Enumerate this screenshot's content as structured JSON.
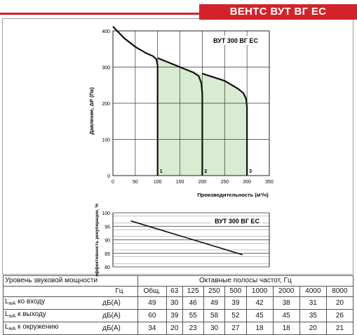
{
  "header": {
    "title": "ВЕНТС ВУТ ВГ ЕС"
  },
  "chart_data": [
    {
      "type": "line",
      "model_label": "ВУТ 300 ВГ ЕС",
      "xlabel": "Производительность (м³/ч)",
      "ylabel": "Давление, ΔР (Па)",
      "xlim": [
        0,
        350
      ],
      "ylim": [
        0,
        400
      ],
      "x_ticks": [
        0,
        50,
        100,
        150,
        200,
        250,
        300,
        350
      ],
      "y_ticks": [
        0,
        100,
        200,
        300,
        400
      ],
      "grid": true,
      "fill_color": "#d7ecd0",
      "curve_color": "#111111",
      "main_curve": {
        "x": [
          0,
          25,
          50,
          75,
          100,
          150,
          200,
          250,
          280,
          300
        ],
        "y": [
          412,
          380,
          356,
          340,
          325,
          300,
          282,
          262,
          240,
          220
        ]
      },
      "series": [
        {
          "name": "1",
          "x": [
            0,
            25,
            50,
            75,
            90,
            97,
            100,
            100
          ],
          "y": [
            412,
            380,
            356,
            338,
            330,
            322,
            305,
            0
          ]
        },
        {
          "name": "2",
          "x": [
            100,
            150,
            180,
            192,
            198,
            200,
            200
          ],
          "y": [
            325,
            300,
            285,
            275,
            255,
            225,
            0
          ]
        },
        {
          "name": "3",
          "x": [
            200,
            250,
            280,
            292,
            298,
            300,
            300
          ],
          "y": [
            282,
            262,
            240,
            228,
            212,
            190,
            0
          ]
        }
      ]
    },
    {
      "type": "line",
      "model_label": "ВУТ 300 ВГ ЕС",
      "ylabel": "эффективность рекуперации, %",
      "ylim": [
        80,
        100
      ],
      "y_ticks": [
        80,
        85,
        90,
        95,
        100
      ],
      "xlim": [
        0,
        350
      ],
      "grid": true,
      "series": [
        {
          "x": [
            40,
            290
          ],
          "y": [
            97,
            84.5
          ]
        }
      ]
    }
  ],
  "sound_table": {
    "title": "Уровень звуковой мощности",
    "bands_title": "Октавные полосы частот, Гц",
    "unit_header": "Гц",
    "columns": [
      "Общ.",
      "63",
      "125",
      "250",
      "500",
      "1000",
      "2000",
      "4000",
      "8000"
    ],
    "rows": [
      {
        "label_main": "L",
        "label_sub": "wA",
        "label_rest": " ко входу",
        "unit": "дБ(А)",
        "values": [
          "49",
          "30",
          "46",
          "49",
          "39",
          "42",
          "38",
          "31",
          "20"
        ]
      },
      {
        "label_main": "L",
        "label_sub": "wA",
        "label_rest": " к выходу",
        "unit": "дБ(А)",
        "values": [
          "60",
          "39",
          "55",
          "58",
          "52",
          "45",
          "45",
          "35",
          "26"
        ]
      },
      {
        "label_main": "L",
        "label_sub": "wA",
        "label_rest": " к окружению",
        "unit": "дБ(А)",
        "values": [
          "34",
          "20",
          "23",
          "30",
          "27",
          "18",
          "18",
          "20",
          "21"
        ]
      }
    ]
  }
}
